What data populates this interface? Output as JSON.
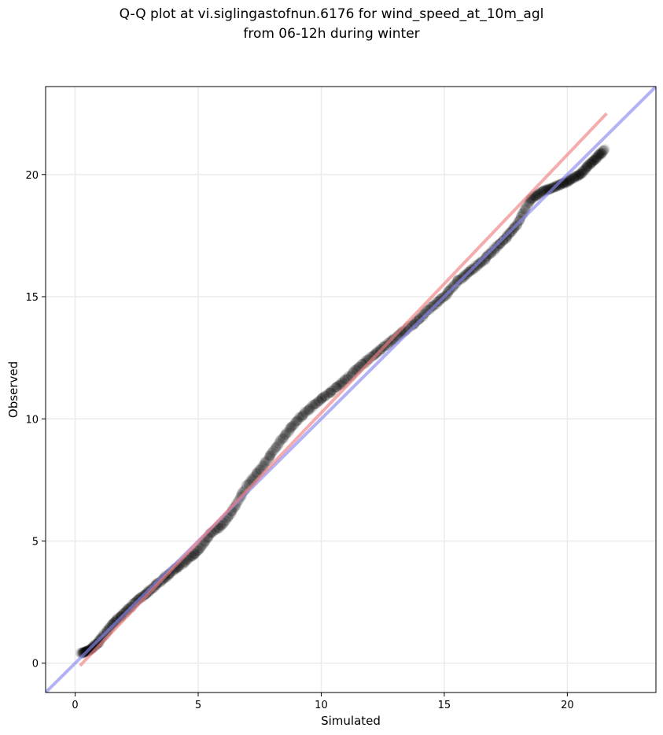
{
  "chart_data": {
    "type": "scatter",
    "title_lines": [
      "Q-Q plot at vi.siglingastofnun.6176 for wind_speed_at_10m_agl",
      "from 06-12h during winter"
    ],
    "xlabel": "Simulated",
    "ylabel": "Observed",
    "xlim": [
      -1.2,
      23.6
    ],
    "ylim": [
      -1.2,
      23.6
    ],
    "xticks": [
      0,
      5,
      10,
      15,
      20
    ],
    "yticks": [
      0,
      5,
      10,
      15,
      20
    ],
    "grid": true,
    "reference_lines": [
      {
        "color": "#8888ee",
        "from": [
          -1.2,
          -1.2
        ],
        "to": [
          23.6,
          23.6
        ]
      },
      {
        "color": "#f08080",
        "from": [
          0.2,
          -0.1
        ],
        "to": [
          21.6,
          22.5
        ]
      }
    ],
    "quantile_anchors": {
      "x": [
        0.25,
        0.6,
        1.0,
        1.5,
        2.0,
        2.5,
        3.0,
        3.5,
        4.0,
        4.5,
        5.0,
        5.5,
        6.0,
        6.5,
        7.0,
        7.5,
        8.0,
        8.5,
        9.0,
        9.5,
        10.0,
        10.5,
        11.0,
        11.5,
        12.0,
        12.5,
        13.0,
        13.5,
        14.0,
        14.5,
        15.0,
        15.5,
        16.0,
        16.5,
        17.0,
        17.5,
        18.0,
        18.5,
        19.0,
        19.5,
        20.0,
        20.5,
        21.0,
        21.5
      ],
      "y": [
        0.4,
        0.55,
        0.9,
        1.6,
        2.05,
        2.55,
        2.95,
        3.4,
        3.8,
        4.2,
        4.6,
        5.3,
        5.7,
        6.4,
        7.3,
        7.9,
        8.6,
        9.3,
        9.9,
        10.4,
        10.8,
        11.2,
        11.6,
        12.1,
        12.5,
        12.9,
        13.3,
        13.7,
        14.1,
        14.6,
        15.0,
        15.6,
        16.0,
        16.4,
        16.9,
        17.4,
        18.0,
        19.0,
        19.3,
        19.5,
        19.7,
        20.0,
        20.5,
        21.0
      ]
    },
    "n_points": 900
  }
}
